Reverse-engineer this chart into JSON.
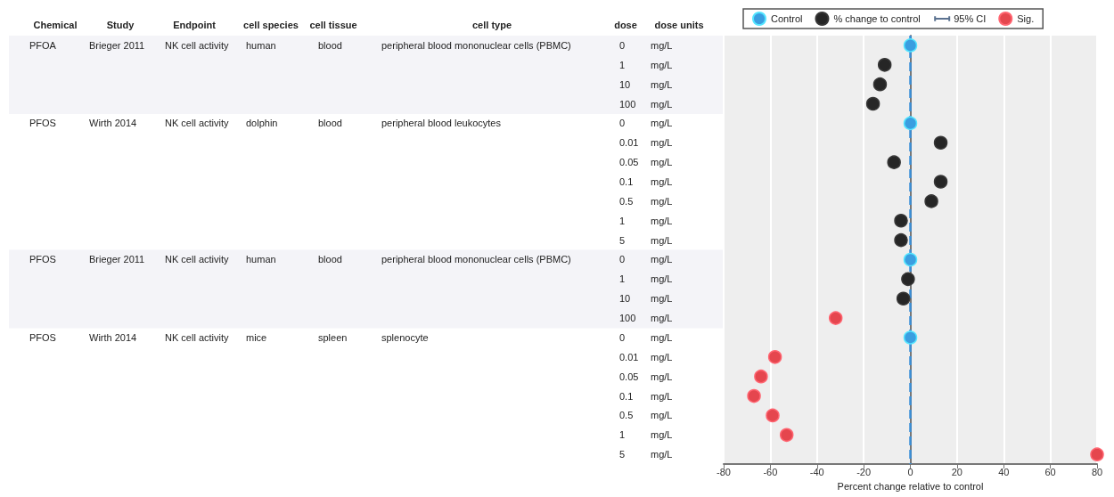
{
  "chart_data": {
    "type": "scatter",
    "orientation": "horizontal",
    "categories": [
      "0",
      "1",
      "10",
      "100",
      "0",
      "0.01",
      "0.05",
      "0.1",
      "0.5",
      "1",
      "5",
      "0",
      "1",
      "10",
      "100",
      "0",
      "0.01",
      "0.05",
      "0.1",
      "0.5",
      "1",
      "5"
    ],
    "series": [
      {
        "name": "Control",
        "color": "#3a9ee0",
        "values": [
          0,
          null,
          null,
          null,
          0,
          null,
          null,
          null,
          null,
          null,
          null,
          0,
          null,
          null,
          null,
          0,
          null,
          null,
          null,
          null,
          null,
          null
        ]
      },
      {
        "name": "% change to control",
        "color": "#262626",
        "values": [
          null,
          -11,
          -13,
          -16,
          null,
          13,
          -7,
          13,
          9,
          -4,
          -4,
          null,
          -1,
          -3,
          null,
          null,
          null,
          null,
          null,
          null,
          null,
          null
        ]
      },
      {
        "name": "95% CI",
        "color": "#5b7290",
        "values": [
          null,
          null,
          null,
          null,
          null,
          null,
          null,
          null,
          null,
          null,
          null,
          null,
          null,
          null,
          null,
          null,
          null,
          null,
          null,
          null,
          null,
          null
        ]
      },
      {
        "name": "Sig.",
        "color": "#e5464e",
        "values": [
          null,
          null,
          null,
          null,
          null,
          null,
          null,
          null,
          null,
          null,
          null,
          null,
          null,
          null,
          -32,
          null,
          -58,
          -64,
          -67,
          -59,
          -53,
          80
        ]
      }
    ],
    "xlim": [
      -80,
      80
    ],
    "xticks": [
      -80,
      -60,
      -40,
      -20,
      0,
      20,
      40,
      60,
      80
    ],
    "xlabel": "Percent change relative to control",
    "grid": "x",
    "legend": "top",
    "marker": "circle",
    "ref_lines": [
      {
        "axis": "x",
        "value": 0,
        "color": "#3a8fd8",
        "line_style": "dashed"
      }
    ],
    "annotations": [
      "Chemical",
      "Study",
      "Endpoint",
      "cell species",
      "cell tissue",
      "cell type",
      "dose",
      "dose units",
      "PFOA",
      "Brieger 2011",
      "NK cell activity",
      "human",
      "blood",
      "peripheral blood mononuclear cells (PBMC)",
      "PFOS",
      "Wirth 2014",
      "NK cell activity",
      "dolphin",
      "blood",
      "peripheral blood leukocytes",
      "PFOS",
      "Brieger 2011",
      "NK cell activity",
      "human",
      "blood",
      "peripheral blood mononuclear cells (PBMC)",
      "PFOS",
      "Wirth 2014",
      "NK cell activity",
      "mice",
      "spleen",
      "splenocyte",
      "mg/L",
      "mg/L",
      "mg/L",
      "mg/L",
      "mg/L",
      "mg/L",
      "mg/L",
      "mg/L",
      "mg/L",
      "mg/L",
      "mg/L",
      "mg/L",
      "mg/L",
      "mg/L",
      "mg/L",
      "mg/L",
      "mg/L",
      "mg/L",
      "mg/L",
      "mg/L",
      "mg/L",
      "mg/L"
    ]
  }
}
